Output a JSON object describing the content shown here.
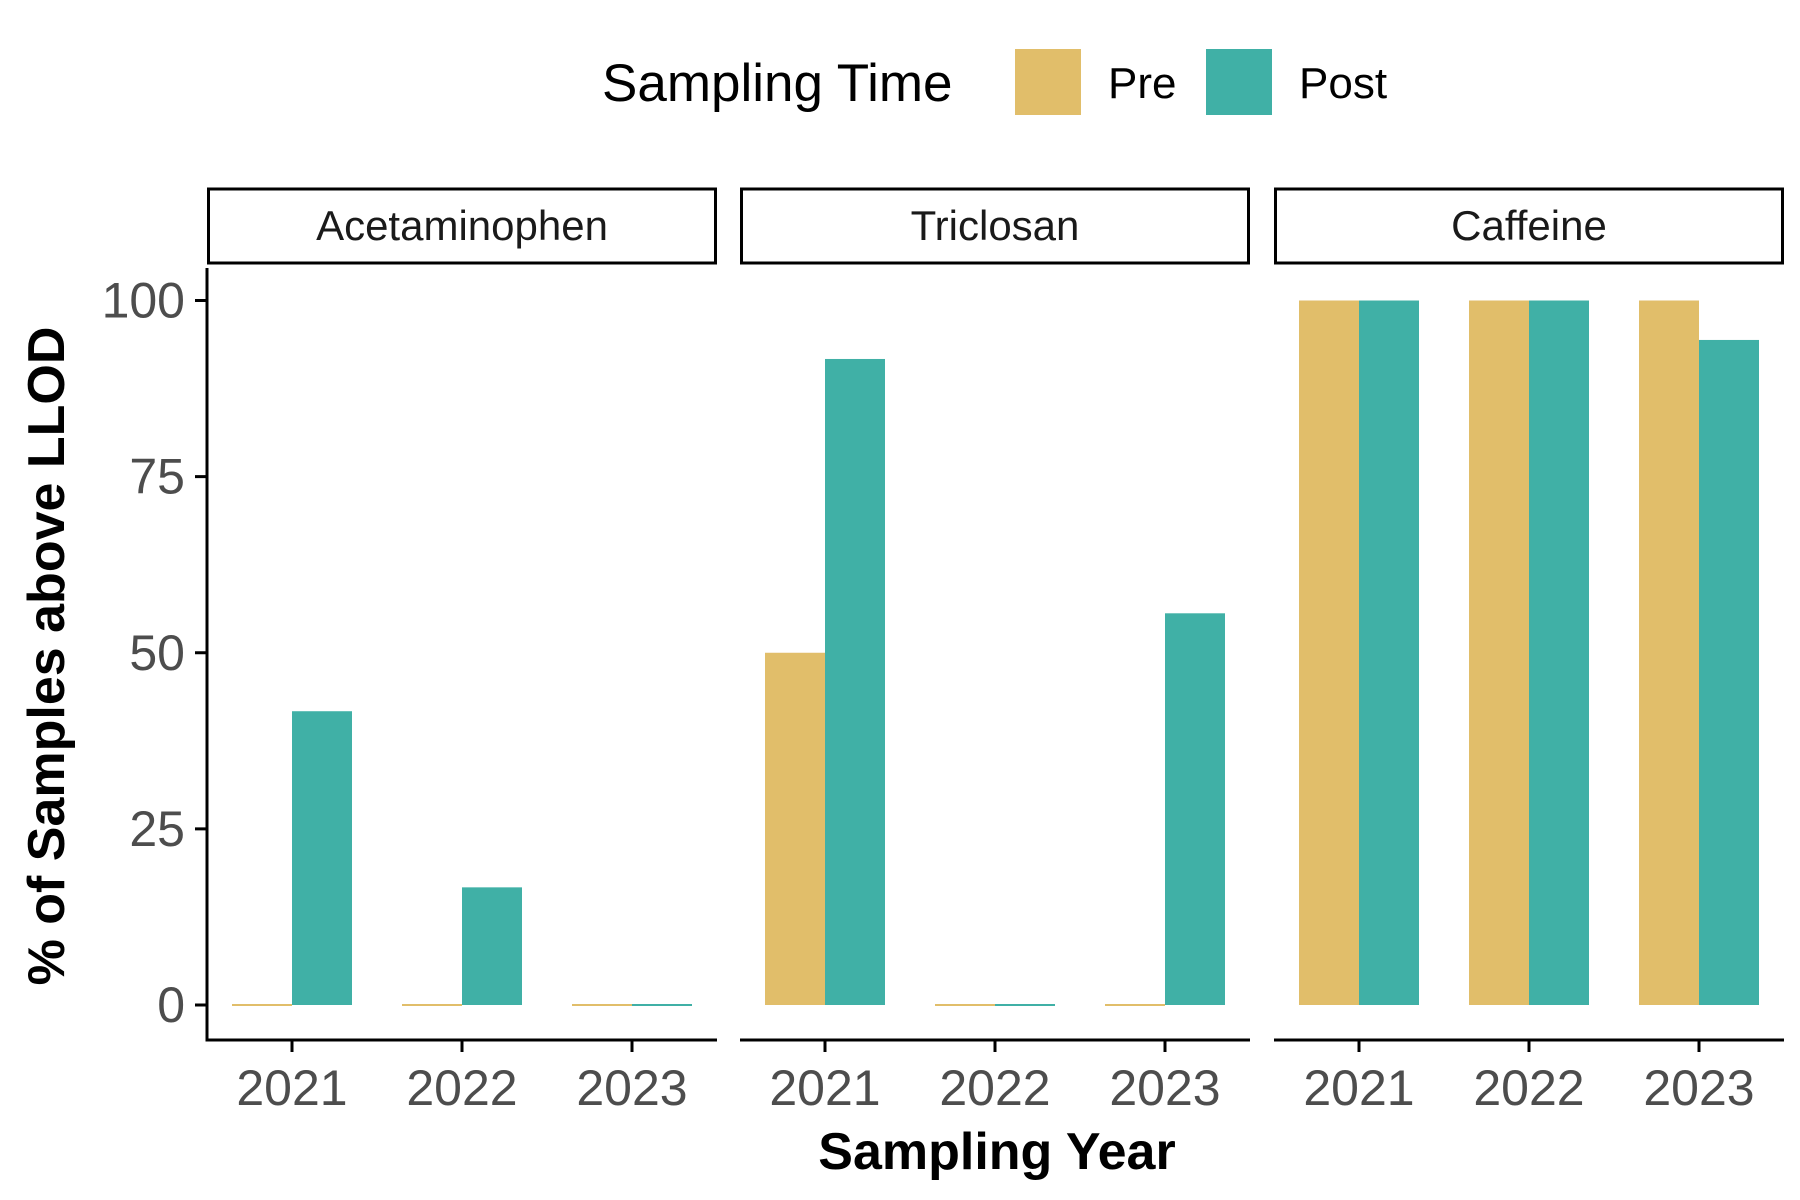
{
  "chart_data": {
    "type": "bar",
    "layout": "faceted grouped bar",
    "title": "",
    "xlabel": "Sampling Year",
    "ylabel": "% of Samples above LLOD",
    "ylim": [
      0,
      100
    ],
    "yticks": [
      0,
      25,
      50,
      75,
      100
    ],
    "categories": [
      "2021",
      "2022",
      "2023"
    ],
    "legend": {
      "title": "Sampling Time",
      "position": "top",
      "entries": [
        {
          "label": "Pre",
          "color": "#E1BE6A"
        },
        {
          "label": "Post",
          "color": "#40B0A6"
        }
      ]
    },
    "grid": false,
    "facets": [
      {
        "name": "Acetaminophen",
        "series": [
          {
            "name": "Pre",
            "values": [
              0,
              0,
              0
            ]
          },
          {
            "name": "Post",
            "values": [
              41.7,
              16.7,
              0
            ]
          }
        ]
      },
      {
        "name": "Triclosan",
        "series": [
          {
            "name": "Pre",
            "values": [
              50,
              0,
              0
            ]
          },
          {
            "name": "Post",
            "values": [
              91.7,
              0,
              55.6
            ]
          }
        ]
      },
      {
        "name": "Caffeine",
        "series": [
          {
            "name": "Pre",
            "values": [
              100,
              100,
              100
            ]
          },
          {
            "name": "Post",
            "values": [
              100,
              100,
              94.4
            ]
          }
        ]
      }
    ]
  }
}
